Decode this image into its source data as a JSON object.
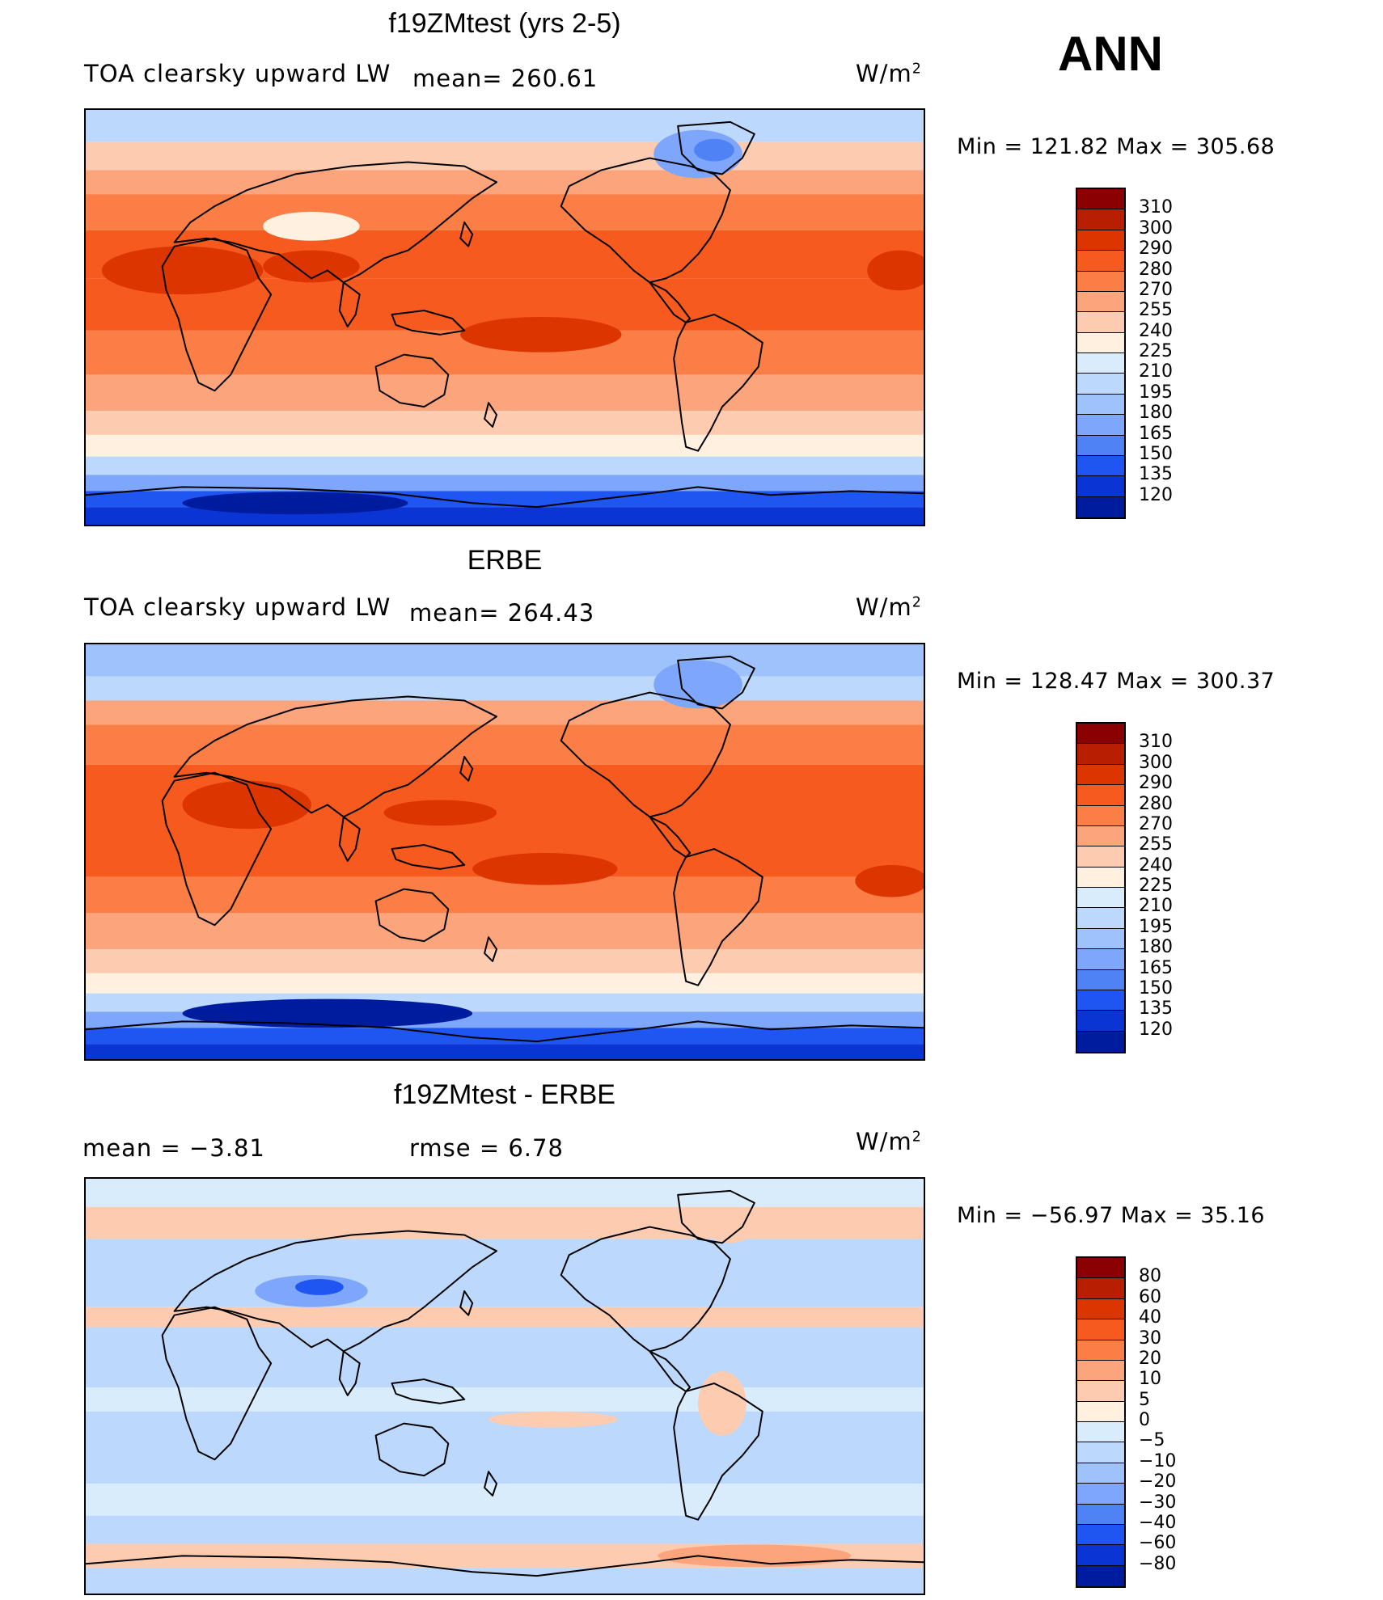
{
  "season": "ANN",
  "panels": [
    {
      "title": "f19ZMtest (yrs 2-5)",
      "left_label": "TOA clearsky upward LW",
      "mid_label": "mean= 260.61",
      "units": "W/m",
      "units_sup": "2",
      "stats": "Min  =  121.82  Max  =  305.68",
      "colorbar_labels": [
        "310",
        "300",
        "290",
        "280",
        "270",
        "255",
        "240",
        "225",
        "210",
        "195",
        "180",
        "165",
        "150",
        "135",
        "120"
      ],
      "colorbar_colors": [
        "#8b0000",
        "#b81e00",
        "#dd3500",
        "#f65a1e",
        "#fa7e45",
        "#fca57d",
        "#fccbb0",
        "#fff0e0",
        "#d8ecfc",
        "#bcd8fc",
        "#9dc2fc",
        "#7ea6fa",
        "#4e82f5",
        "#1f55f0",
        "#0a35d4",
        "#001c9e"
      ],
      "bands": [
        {
          "y0": 0,
          "y1": 40,
          "c": "#bcd8fc"
        },
        {
          "y0": 40,
          "y1": 75,
          "c": "#fccbb0"
        },
        {
          "y0": 75,
          "y1": 105,
          "c": "#fca57d"
        },
        {
          "y0": 105,
          "y1": 150,
          "c": "#fa7e45"
        },
        {
          "y0": 150,
          "y1": 210,
          "c": "#f65a1e"
        },
        {
          "y0": 210,
          "y1": 275,
          "c": "#f65a1e"
        },
        {
          "y0": 275,
          "y1": 330,
          "c": "#fa7e45"
        },
        {
          "y0": 330,
          "y1": 375,
          "c": "#fca57d"
        },
        {
          "y0": 375,
          "y1": 405,
          "c": "#fccbb0"
        },
        {
          "y0": 405,
          "y1": 432,
          "c": "#fff0e0"
        },
        {
          "y0": 432,
          "y1": 455,
          "c": "#bcd8fc"
        },
        {
          "y0": 455,
          "y1": 475,
          "c": "#7ea6fa"
        },
        {
          "y0": 475,
          "y1": 495,
          "c": "#1f55f0"
        },
        {
          "y0": 495,
          "y1": 517,
          "c": "#0a35d4"
        }
      ]
    },
    {
      "title": "ERBE",
      "left_label": "TOA clearsky upward LW",
      "mid_label": "mean= 264.43",
      "units": "W/m",
      "units_sup": "2",
      "stats": "Min  =  128.47  Max  =  300.37",
      "colorbar_labels": [
        "310",
        "300",
        "290",
        "280",
        "270",
        "255",
        "240",
        "225",
        "210",
        "195",
        "180",
        "165",
        "150",
        "135",
        "120"
      ],
      "colorbar_colors": [
        "#8b0000",
        "#b81e00",
        "#dd3500",
        "#f65a1e",
        "#fa7e45",
        "#fca57d",
        "#fccbb0",
        "#fff0e0",
        "#d8ecfc",
        "#bcd8fc",
        "#9dc2fc",
        "#7ea6fa",
        "#4e82f5",
        "#1f55f0",
        "#0a35d4",
        "#001c9e"
      ],
      "bands": [
        {
          "y0": 0,
          "y1": 40,
          "c": "#9dc2fc"
        },
        {
          "y0": 40,
          "y1": 70,
          "c": "#bcd8fc"
        },
        {
          "y0": 70,
          "y1": 100,
          "c": "#fca57d"
        },
        {
          "y0": 100,
          "y1": 150,
          "c": "#fa7e45"
        },
        {
          "y0": 150,
          "y1": 290,
          "c": "#f65a1e"
        },
        {
          "y0": 290,
          "y1": 335,
          "c": "#fa7e45"
        },
        {
          "y0": 335,
          "y1": 380,
          "c": "#fca57d"
        },
        {
          "y0": 380,
          "y1": 410,
          "c": "#fccbb0"
        },
        {
          "y0": 410,
          "y1": 435,
          "c": "#fff0e0"
        },
        {
          "y0": 435,
          "y1": 458,
          "c": "#bcd8fc"
        },
        {
          "y0": 458,
          "y1": 478,
          "c": "#7ea6fa"
        },
        {
          "y0": 478,
          "y1": 498,
          "c": "#1f55f0"
        },
        {
          "y0": 498,
          "y1": 517,
          "c": "#0a35d4"
        }
      ]
    },
    {
      "title": "f19ZMtest - ERBE",
      "left_label": "mean =    −3.81",
      "mid_label": "rmse =     6.78",
      "units": "W/m",
      "units_sup": "2",
      "stats": "Min  =  −56.97  Max  =    35.16",
      "colorbar_labels": [
        "80",
        "60",
        "40",
        "30",
        "20",
        "10",
        "5",
        "0",
        "−5",
        "−10",
        "−20",
        "−30",
        "−40",
        "−60",
        "−80"
      ],
      "colorbar_colors": [
        "#8b0000",
        "#b81e00",
        "#dd3500",
        "#f65a1e",
        "#fa7e45",
        "#fca57d",
        "#fccbb0",
        "#fff0e0",
        "#d8ecfc",
        "#bcd8fc",
        "#9dc2fc",
        "#7ea6fa",
        "#4e82f5",
        "#1f55f0",
        "#0a35d4",
        "#001c9e"
      ],
      "bands": [
        {
          "y0": 0,
          "y1": 35,
          "c": "#d8ecfc"
        },
        {
          "y0": 35,
          "y1": 75,
          "c": "#fccbb0"
        },
        {
          "y0": 75,
          "y1": 160,
          "c": "#bcd8fc"
        },
        {
          "y0": 160,
          "y1": 185,
          "c": "#fccbb0"
        },
        {
          "y0": 185,
          "y1": 260,
          "c": "#bcd8fc"
        },
        {
          "y0": 260,
          "y1": 290,
          "c": "#d8ecfc"
        },
        {
          "y0": 290,
          "y1": 380,
          "c": "#bcd8fc"
        },
        {
          "y0": 380,
          "y1": 420,
          "c": "#d8ecfc"
        },
        {
          "y0": 420,
          "y1": 455,
          "c": "#bcd8fc"
        },
        {
          "y0": 455,
          "y1": 485,
          "c": "#fccbb0"
        },
        {
          "y0": 485,
          "y1": 517,
          "c": "#bcd8fc"
        }
      ]
    }
  ]
}
